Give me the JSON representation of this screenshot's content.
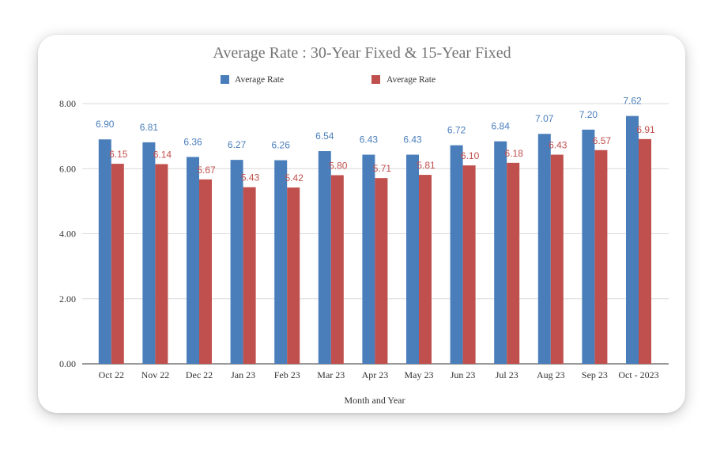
{
  "chart_data": {
    "type": "bar",
    "title": "Average Rate : 30-Year Fixed & 15-Year Fixed",
    "xlabel": "Month and Year",
    "ylabel": "",
    "ylim": [
      0,
      8
    ],
    "yticks": [
      "0.00",
      "2.00",
      "4.00",
      "6.00",
      "8.00"
    ],
    "grid": true,
    "legend_position": "top",
    "categories": [
      "Oct 22",
      "Nov 22",
      "Dec 22",
      "Jan 23",
      "Feb 23",
      "Mar 23",
      "Apr 23",
      "May 23",
      "Jun 23",
      "Jul 23",
      "Aug 23",
      "Sep 23",
      "Oct - 2023"
    ],
    "series": [
      {
        "name": "Average Rate",
        "color": "#4a7ebb",
        "label_color": "#4a7ebb",
        "values": [
          6.9,
          6.81,
          6.36,
          6.27,
          6.26,
          6.54,
          6.43,
          6.43,
          6.72,
          6.84,
          7.07,
          7.2,
          7.62
        ],
        "labels": [
          "6.90",
          "6.81",
          "6.36",
          "6.27",
          "6.26",
          "6.54",
          "6.43",
          "6.43",
          "6.72",
          "6.84",
          "7.07",
          "7.20",
          "7.62"
        ]
      },
      {
        "name": "Average Rate",
        "color": "#c0504d",
        "label_color": "#c0504d",
        "values": [
          6.15,
          6.14,
          5.67,
          5.43,
          5.42,
          5.8,
          5.71,
          5.81,
          6.1,
          6.18,
          6.43,
          6.57,
          6.91
        ],
        "labels": [
          "6.15",
          "6.14",
          "5.67",
          "5.43",
          "5.42",
          "5.80",
          "5.71",
          "5.81",
          "6.10",
          "6.18",
          "6.43",
          "6.57",
          "6.91"
        ]
      }
    ]
  }
}
